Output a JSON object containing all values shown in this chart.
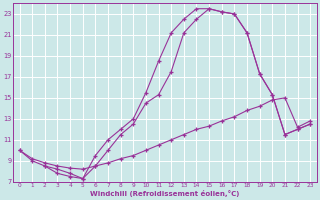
{
  "background_color": "#cce8e8",
  "grid_color": "#aacccc",
  "line_color": "#993399",
  "marker": "+",
  "xlabel": "Windchill (Refroidissement éolien,°C)",
  "xlim": [
    -0.5,
    23.5
  ],
  "ylim": [
    7,
    24
  ],
  "yticks": [
    7,
    9,
    11,
    13,
    15,
    17,
    19,
    21,
    23
  ],
  "xticks": [
    0,
    1,
    2,
    3,
    4,
    5,
    6,
    7,
    8,
    9,
    10,
    11,
    12,
    13,
    14,
    15,
    16,
    17,
    18,
    19,
    20,
    21,
    22,
    23
  ],
  "curve1_x": [
    0,
    1,
    2,
    3,
    4,
    5,
    6,
    7,
    8,
    9,
    10,
    11,
    12,
    13,
    14,
    15,
    16,
    17,
    18,
    19,
    20,
    21,
    22,
    23
  ],
  "curve1_y": [
    10.0,
    9.0,
    8.5,
    8.2,
    7.8,
    7.3,
    9.5,
    11.0,
    12.0,
    13.0,
    15.5,
    18.5,
    21.2,
    22.5,
    23.5,
    23.5,
    23.2,
    23.0,
    21.2,
    17.3,
    15.3,
    11.5,
    12.0,
    12.5
  ],
  "curve2_x": [
    2,
    3,
    4,
    5,
    6,
    7,
    8,
    9,
    10,
    11,
    12,
    13,
    14,
    15,
    16,
    17,
    18,
    19,
    20,
    21,
    22,
    23
  ],
  "curve2_y": [
    8.5,
    7.8,
    7.5,
    7.3,
    8.5,
    10.0,
    11.5,
    12.5,
    14.5,
    15.3,
    17.5,
    21.2,
    22.5,
    23.5,
    23.2,
    23.0,
    21.2,
    17.3,
    15.3,
    11.5,
    12.0,
    12.5
  ],
  "curve3_x": [
    0,
    1,
    2,
    3,
    4,
    5,
    6,
    7,
    8,
    9,
    10,
    11,
    12,
    13,
    14,
    15,
    16,
    17,
    18,
    19,
    20,
    21,
    22,
    23
  ],
  "curve3_y": [
    10.0,
    9.2,
    8.8,
    8.5,
    8.3,
    8.2,
    8.5,
    8.8,
    9.2,
    9.5,
    10.0,
    10.5,
    11.0,
    11.5,
    12.0,
    12.3,
    12.8,
    13.2,
    13.8,
    14.2,
    14.8,
    15.0,
    12.2,
    12.8
  ]
}
